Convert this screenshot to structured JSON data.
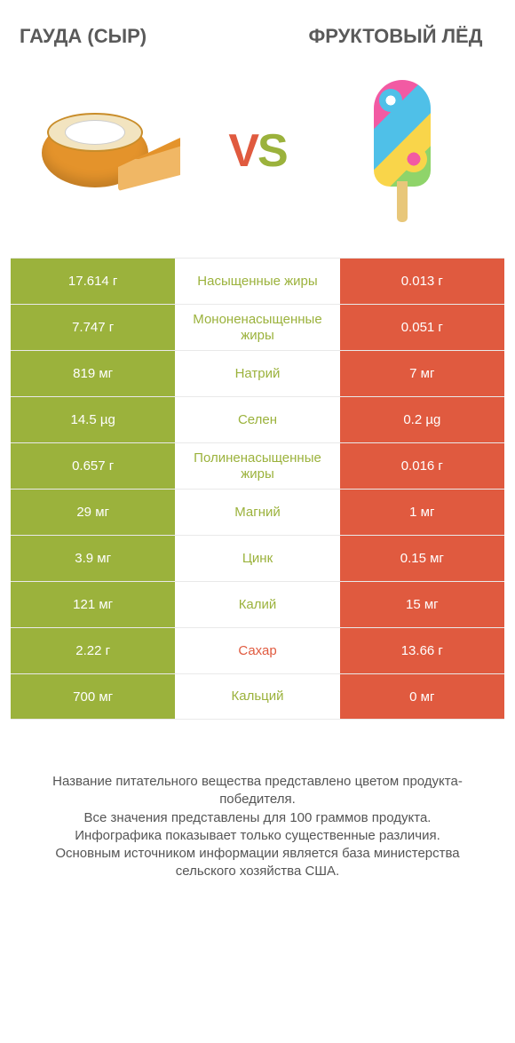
{
  "header": {
    "left_title": "ГАУДА (СЫР)",
    "right_title": "ФРУКТОВЫЙ ЛЁД",
    "vs_v": "V",
    "vs_s": "S"
  },
  "colors": {
    "left_win": "#9bb23c",
    "right_win": "#e05a3f",
    "row_border": "#e9e9e9",
    "text_white": "#ffffff"
  },
  "table": {
    "type": "comparison-table",
    "columns": [
      "left_value",
      "nutrient",
      "right_value"
    ],
    "rows": [
      {
        "left": "17.614 г",
        "mid": "Насыщенные жиры",
        "right": "0.013 г",
        "winner": "left"
      },
      {
        "left": "7.747 г",
        "mid": "Мононенасыщенные жиры",
        "right": "0.051 г",
        "winner": "left"
      },
      {
        "left": "819 мг",
        "mid": "Натрий",
        "right": "7 мг",
        "winner": "left"
      },
      {
        "left": "14.5 µg",
        "mid": "Селен",
        "right": "0.2 µg",
        "winner": "left"
      },
      {
        "left": "0.657 г",
        "mid": "Полиненасыщенные жиры",
        "right": "0.016 г",
        "winner": "left"
      },
      {
        "left": "29 мг",
        "mid": "Магний",
        "right": "1 мг",
        "winner": "left"
      },
      {
        "left": "3.9 мг",
        "mid": "Цинк",
        "right": "0.15 мг",
        "winner": "left"
      },
      {
        "left": "121 мг",
        "mid": "Калий",
        "right": "15 мг",
        "winner": "left"
      },
      {
        "left": "2.22 г",
        "mid": "Сахар",
        "right": "13.66 г",
        "winner": "right"
      },
      {
        "left": "700 мг",
        "mid": "Кальций",
        "right": "0 мг",
        "winner": "left"
      }
    ]
  },
  "footer": {
    "line1": "Название питательного вещества представлено цветом продукта-победителя.",
    "line2": "Все значения представлены для 100 граммов продукта.",
    "line3": "Инфографика показывает только существенные различия.",
    "line4": "Основным источником информации является база министерства сельского хозяйства США."
  }
}
